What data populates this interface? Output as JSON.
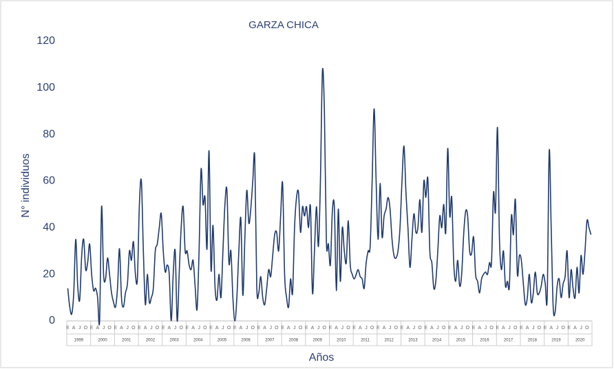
{
  "chart_data": {
    "type": "line",
    "title": "GARZA CHICA",
    "y_label": "N° individuos",
    "x_label": "Años",
    "years": [
      "1999",
      "2000",
      "2001",
      "2002",
      "2003",
      "2004",
      "2005",
      "2006",
      "2007",
      "2008",
      "2009",
      "2010",
      "2011",
      "2012",
      "2013",
      "2014",
      "2015",
      "2016",
      "2017",
      "2018",
      "2019",
      "2020"
    ],
    "categories": [
      "E",
      null,
      null,
      "A",
      null,
      null,
      "J",
      null,
      null,
      "O",
      null,
      null,
      "E",
      null,
      null,
      "A",
      null,
      null,
      "J",
      null,
      null,
      "O",
      null,
      null,
      "E",
      null,
      null,
      "A",
      null,
      null,
      "J",
      null,
      null,
      "O",
      null,
      null,
      "E",
      null,
      null,
      "A",
      null,
      null,
      "J",
      null,
      null,
      "O",
      null,
      null,
      "E",
      null,
      null,
      "A",
      null,
      null,
      "J",
      null,
      null,
      "O",
      null,
      null,
      "E",
      null,
      null,
      "A",
      null,
      null,
      "J",
      null,
      null,
      "O",
      null,
      null,
      "E",
      null,
      null,
      "A",
      null,
      null,
      "J",
      null,
      null,
      "O",
      null,
      null,
      "E",
      null,
      null,
      "A",
      null,
      null,
      "J",
      null,
      null,
      "O",
      null,
      null,
      "E",
      null,
      null,
      "A",
      null,
      null,
      "J",
      null,
      null,
      "O",
      null,
      null,
      "E",
      null,
      null,
      "A",
      null,
      null,
      "J",
      null,
      null,
      "O",
      null,
      null,
      "E",
      null,
      null,
      "A",
      null,
      null,
      "J",
      null,
      null,
      "O",
      null,
      null,
      "E",
      null,
      null,
      "A",
      null,
      null,
      "J",
      null,
      null,
      "O",
      null,
      null,
      "E",
      null,
      null,
      "A",
      null,
      null,
      "J",
      null,
      null,
      "O",
      null,
      null,
      "E",
      null,
      null,
      "A",
      null,
      null,
      "J",
      null,
      null,
      "O",
      null,
      null,
      "E",
      null,
      null,
      "A",
      null,
      null,
      "J",
      null,
      null,
      "O",
      null,
      null,
      "E",
      null,
      null,
      "A",
      null,
      null,
      "J",
      null,
      null,
      "O",
      null,
      null,
      "E",
      null,
      null,
      "A",
      null,
      null,
      "J",
      null,
      null,
      "O",
      null,
      null,
      "E",
      null,
      null,
      "A",
      null,
      null,
      "J",
      null,
      null,
      "O",
      null,
      null,
      "E",
      null,
      null,
      "A",
      null,
      null,
      "J",
      null,
      null,
      "O",
      null,
      null,
      "E",
      null,
      null,
      "A",
      null,
      null,
      "J",
      null,
      null,
      "O",
      null,
      null,
      "E",
      null,
      null,
      "A",
      null,
      null,
      "J",
      null,
      null,
      "O",
      null,
      null,
      "E",
      null,
      null,
      "A",
      null,
      null,
      "J",
      null,
      null,
      "O",
      null,
      null
    ],
    "values": [
      14,
      6,
      3,
      12,
      35,
      15,
      9,
      28,
      35,
      22,
      25,
      33,
      20,
      13,
      14,
      10,
      0,
      49,
      20,
      18,
      27,
      20,
      12,
      8,
      6,
      14,
      31,
      10,
      6,
      12,
      16,
      30,
      26,
      34,
      20,
      18,
      50,
      60,
      30,
      7,
      20,
      8,
      10,
      14,
      30,
      33,
      40,
      46,
      30,
      21,
      24,
      20,
      0,
      20,
      30,
      0,
      20,
      40,
      49,
      30,
      30,
      24,
      22,
      26,
      15,
      5,
      30,
      65,
      50,
      53,
      31,
      73,
      22,
      41,
      15,
      9,
      20,
      10,
      30,
      50,
      56,
      25,
      30,
      10,
      0,
      10,
      30,
      44,
      11,
      35,
      56,
      42,
      48,
      60,
      70,
      15,
      12,
      19,
      10,
      7,
      14,
      22,
      19,
      28,
      37,
      38,
      30,
      45,
      59,
      20,
      10,
      6,
      18,
      12,
      40,
      53,
      55,
      38,
      49,
      45,
      49,
      40,
      49,
      12,
      30,
      49,
      32,
      60,
      107,
      90,
      34,
      33,
      24,
      47,
      49,
      13,
      48,
      17,
      40,
      30,
      25,
      43,
      24,
      20,
      18,
      20,
      22,
      19,
      18,
      14,
      25,
      30,
      32,
      60,
      91,
      60,
      35,
      59,
      36,
      45,
      48,
      53,
      48,
      35,
      28,
      27,
      30,
      40,
      60,
      75,
      55,
      40,
      23,
      35,
      46,
      38,
      40,
      52,
      38,
      60,
      53,
      61,
      30,
      25,
      14,
      17,
      30,
      45,
      40,
      50,
      38,
      74,
      45,
      53,
      25,
      17,
      26,
      15,
      20,
      37,
      47,
      45,
      30,
      29,
      36,
      20,
      17,
      12,
      18,
      20,
      21,
      20,
      25,
      25,
      55,
      47,
      83,
      35,
      22,
      30,
      15,
      17,
      15,
      45,
      37,
      52,
      20,
      28,
      26,
      16,
      7,
      10,
      20,
      8,
      12,
      21,
      12,
      12,
      15,
      20,
      16,
      10,
      73,
      40,
      6,
      4,
      15,
      18,
      10,
      16,
      19,
      30,
      10,
      22,
      14,
      10,
      23,
      12,
      28,
      20,
      30,
      43,
      40,
      37
    ],
    "color": "#1f3a6e",
    "ylim": [
      0,
      120
    ],
    "yticks": [
      0,
      20,
      40,
      60,
      80,
      100,
      120
    ]
  }
}
